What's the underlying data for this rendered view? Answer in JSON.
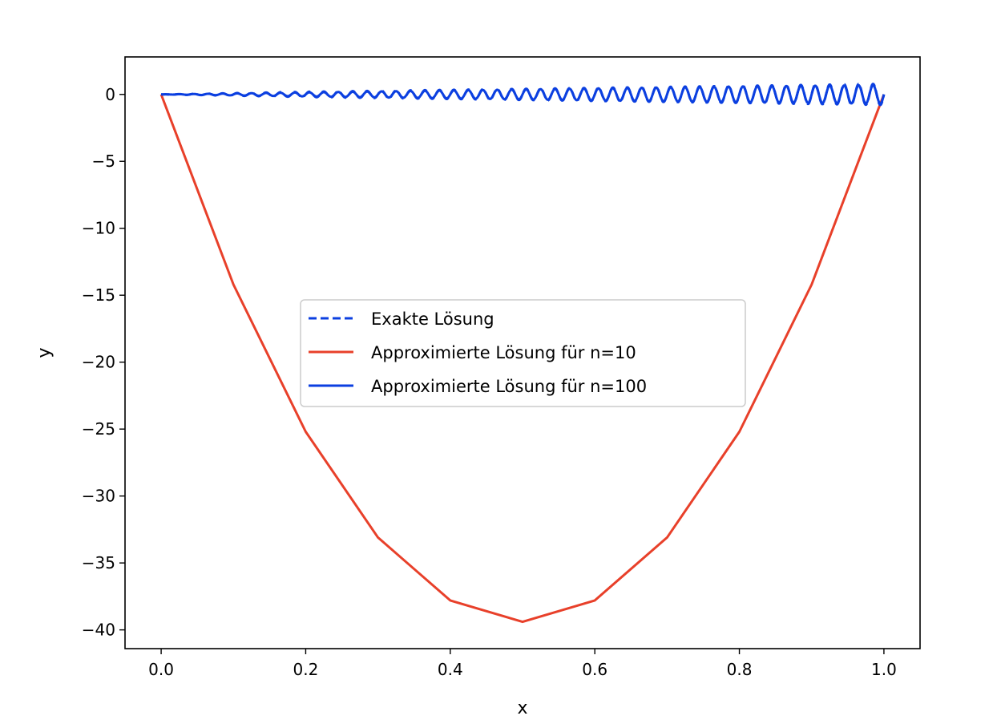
{
  "chart_data": {
    "type": "line",
    "title": "",
    "xlabel": "x",
    "ylabel": "y",
    "xlim": [
      -0.05,
      1.05
    ],
    "ylim": [
      -41.4,
      2.8
    ],
    "xticks": [
      0.0,
      0.2,
      0.4,
      0.6,
      0.8,
      1.0
    ],
    "xtick_labels": [
      "0.0",
      "0.2",
      "0.4",
      "0.6",
      "0.8",
      "1.0"
    ],
    "yticks": [
      0,
      -5,
      -10,
      -15,
      -20,
      -25,
      -30,
      -35,
      -40
    ],
    "ytick_labels": [
      "0",
      "−5",
      "−10",
      "−15",
      "−20",
      "−25",
      "−30",
      "−35",
      "−40"
    ],
    "grid": false,
    "legend_position": "center",
    "series": [
      {
        "name": "Exakte Lösung",
        "color": "#0b3fe0",
        "style": "dashed",
        "envelope": {
          "x": [
            0.0,
            0.2,
            0.4,
            0.6,
            0.8,
            1.0
          ],
          "amplitude": [
            0.0,
            0.2,
            0.35,
            0.5,
            0.65,
            0.8
          ],
          "cycles": 50
        }
      },
      {
        "name": "Approximierte Lösung für n=10",
        "color": "#e8402a",
        "style": "solid",
        "x": [
          0.0,
          0.1,
          0.2,
          0.3,
          0.4,
          0.5,
          0.6,
          0.7,
          0.8,
          0.9,
          1.0
        ],
        "y": [
          0.0,
          -14.2,
          -25.2,
          -33.1,
          -37.8,
          -39.4,
          -37.8,
          -33.1,
          -25.2,
          -14.2,
          0.0
        ]
      },
      {
        "name": "Approximierte Lösung für n=100",
        "color": "#0b3fe0",
        "style": "solid",
        "envelope": {
          "x": [
            0.0,
            0.2,
            0.4,
            0.6,
            0.8,
            1.0
          ],
          "amplitude": [
            0.0,
            0.15,
            0.3,
            0.45,
            0.6,
            0.7
          ],
          "cycles": 50
        }
      }
    ]
  }
}
